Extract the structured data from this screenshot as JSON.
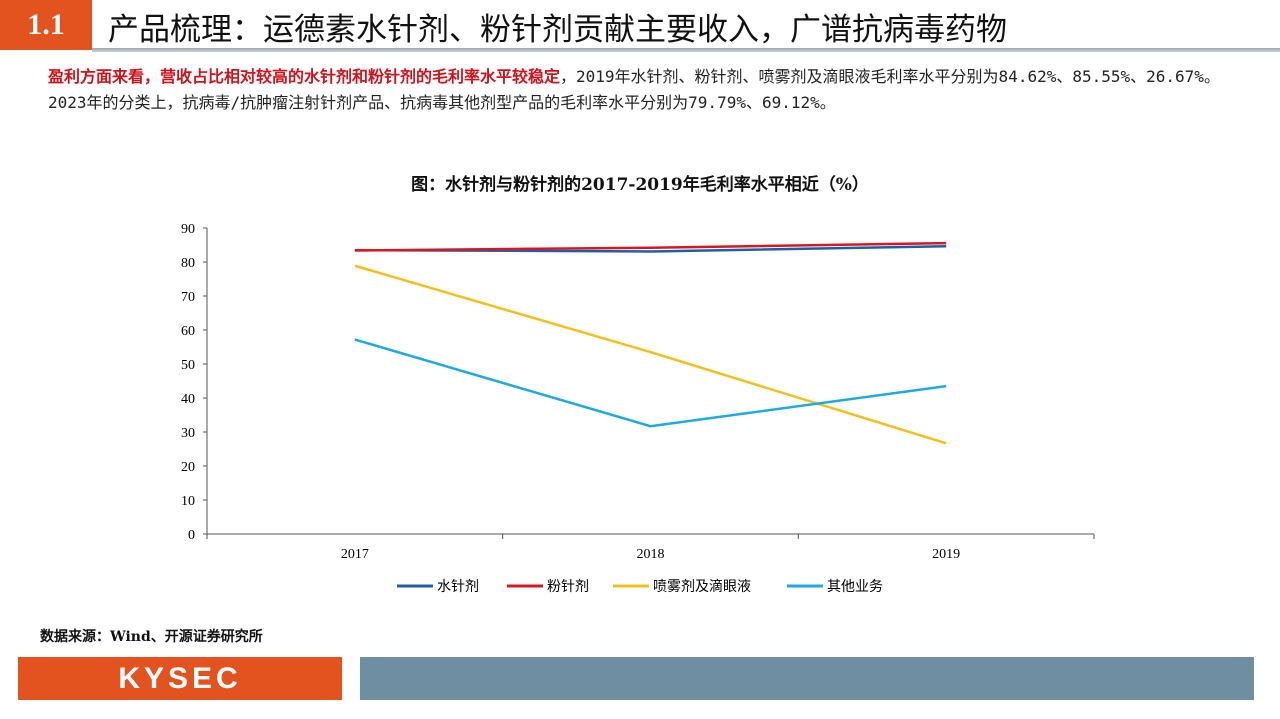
{
  "header": {
    "section": "1.1",
    "title": "产品梳理：运德素水针剂、粉针剂贡献主要收入，广谱抗病毒药物"
  },
  "paragraph": {
    "highlight": "盈利方面来看，营收占比相对较高的水针剂和粉针剂的毛利率水平较稳定",
    "body": "，2019年水针剂、粉针剂、喷雾剂及滴眼液毛利率水平分别为84.62%、85.55%、26.67%。2023年的分类上，抗病毒/抗肿瘤注射针剂产品、抗病毒其他剂型产品的毛利率水平分别为79.79%、69.12%。"
  },
  "chart_data": {
    "type": "line",
    "title": "图：水针剂与粉针剂的2017-2019年毛利率水平相近（%）",
    "categories": [
      "2017",
      "2018",
      "2019"
    ],
    "ylim": [
      0,
      90
    ],
    "yticks": [
      0,
      10,
      20,
      30,
      40,
      50,
      60,
      70,
      80,
      90
    ],
    "legend_position": "bottom",
    "grid": false,
    "series": [
      {
        "name": "水针剂",
        "color": "#1f5fa8",
        "values": [
          83.5,
          83.1,
          84.62
        ]
      },
      {
        "name": "粉针剂",
        "color": "#d7191f",
        "values": [
          83.4,
          84.2,
          85.55
        ]
      },
      {
        "name": "喷雾剂及滴眼液",
        "color": "#f2c01a",
        "values": [
          78.9,
          53.5,
          26.67
        ]
      },
      {
        "name": "其他业务",
        "color": "#1ea9e1",
        "values": [
          57.2,
          31.7,
          43.5
        ]
      }
    ]
  },
  "source": "数据来源：Wind、开源证券研究所",
  "footer": {
    "logo": "KYSEC"
  }
}
